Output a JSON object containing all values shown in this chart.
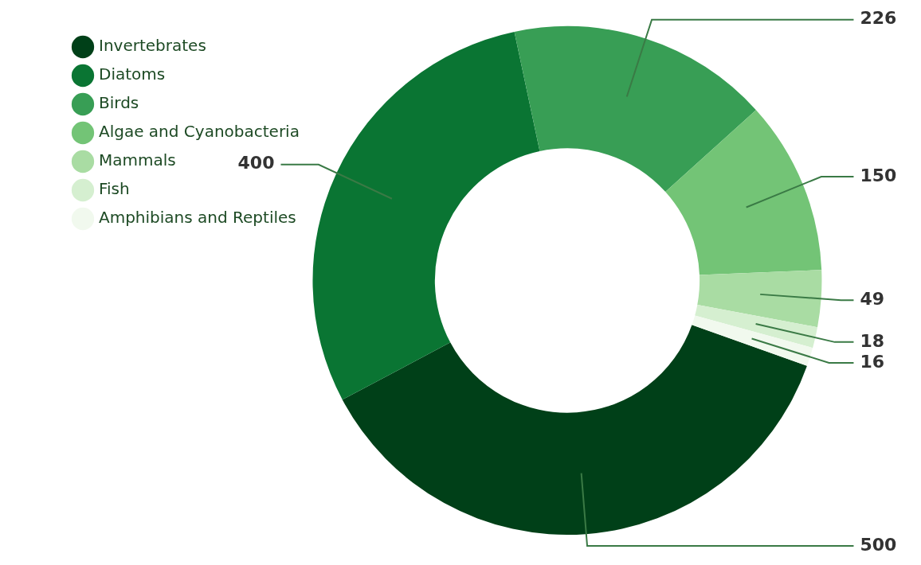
{
  "chart_data": {
    "type": "donut",
    "categories": [
      "Invertebrates",
      "Diatoms",
      "Birds",
      "Algae and Cyanobacteria",
      "Mammals",
      "Fish",
      "Amphibians and Reptiles"
    ],
    "values": [
      500,
      400,
      226,
      150,
      49,
      18,
      16
    ],
    "colors": [
      "#004018",
      "#0a7533",
      "#389e55",
      "#73c476",
      "#a9dca3",
      "#d5efd0",
      "#f1f9ee"
    ],
    "data_labels": true,
    "legend": "top left"
  }
}
